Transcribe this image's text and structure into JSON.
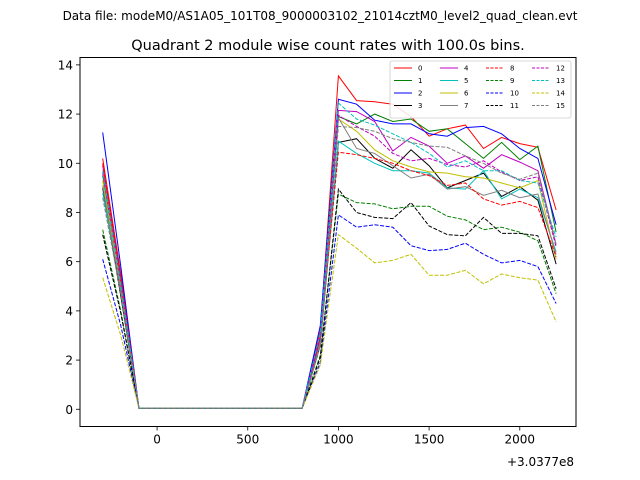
{
  "header": {
    "data_file": "Data file: modeM0/AS1A05_101T08_9000003102_21014cztM0_level2_quad_clean.evt"
  },
  "chart_data": {
    "type": "line",
    "title": "Quadrant 2 module wise count rates with 100.0s bins.",
    "xlabel": "",
    "ylabel": "",
    "x_offset_label": "+3.0377e8",
    "xlim": [
      -425,
      2310
    ],
    "ylim": [
      -0.7,
      14.3
    ],
    "x_ticks": [
      0,
      500,
      1000,
      1500,
      2000
    ],
    "x_tick_labels": [
      "0",
      "500",
      "1000",
      "1500",
      "2000"
    ],
    "y_ticks": [
      0,
      2,
      4,
      6,
      8,
      10,
      12,
      14
    ],
    "y_tick_labels": [
      "0",
      "2",
      "4",
      "6",
      "8",
      "10",
      "12",
      "14"
    ],
    "grid": false,
    "legend_position": "top-right",
    "x": [
      -300,
      -200,
      -100,
      0,
      100,
      200,
      300,
      400,
      500,
      600,
      700,
      800,
      900,
      1000,
      1100,
      1200,
      1300,
      1400,
      1500,
      1600,
      1700,
      1800,
      1900,
      2000,
      2100,
      2200
    ],
    "series": [
      {
        "name": "0",
        "color": "#ff0000",
        "dash": "solid",
        "values": [
          10.2,
          5.5,
          0.05,
          0.05,
          0.05,
          0.05,
          0.05,
          0.05,
          0.05,
          0.05,
          0.05,
          0.05,
          3.2,
          13.55,
          12.55,
          12.5,
          12.4,
          11.9,
          11.1,
          11.4,
          11.55,
          10.6,
          11.05,
          10.8,
          10.65,
          8.1
        ]
      },
      {
        "name": "1",
        "color": "#008000",
        "dash": "solid",
        "values": [
          9.5,
          5.2,
          0.05,
          0.05,
          0.05,
          0.05,
          0.05,
          0.05,
          0.05,
          0.05,
          0.05,
          0.05,
          2.9,
          11.9,
          11.6,
          12.0,
          11.7,
          11.8,
          11.3,
          11.4,
          10.8,
          10.2,
          10.85,
          10.15,
          10.7,
          7.2
        ]
      },
      {
        "name": "2",
        "color": "#0000ff",
        "dash": "solid",
        "values": [
          11.25,
          5.8,
          0.05,
          0.05,
          0.05,
          0.05,
          0.05,
          0.05,
          0.05,
          0.05,
          0.05,
          0.05,
          3.4,
          12.6,
          12.4,
          11.75,
          11.6,
          11.6,
          11.2,
          11.1,
          11.45,
          11.5,
          11.2,
          10.6,
          10.2,
          7.5
        ]
      },
      {
        "name": "3",
        "color": "#000000",
        "dash": "solid",
        "values": [
          9.0,
          4.6,
          0.05,
          0.05,
          0.05,
          0.05,
          0.05,
          0.05,
          0.05,
          0.05,
          0.05,
          0.05,
          2.6,
          10.85,
          11.0,
          10.2,
          9.8,
          10.55,
          9.9,
          9.0,
          9.3,
          9.6,
          8.65,
          9.05,
          8.5,
          5.9
        ]
      },
      {
        "name": "4",
        "color": "#c000c0",
        "dash": "solid",
        "values": [
          9.9,
          5.3,
          0.05,
          0.05,
          0.05,
          0.05,
          0.05,
          0.05,
          0.05,
          0.05,
          0.05,
          0.05,
          3.0,
          12.15,
          12.1,
          11.7,
          10.5,
          11.05,
          10.7,
          10.0,
          10.3,
          9.8,
          10.35,
          10.05,
          9.7,
          6.7
        ]
      },
      {
        "name": "5",
        "color": "#00c0c0",
        "dash": "solid",
        "values": [
          8.8,
          4.9,
          0.05,
          0.05,
          0.05,
          0.05,
          0.05,
          0.05,
          0.05,
          0.05,
          0.05,
          0.05,
          2.7,
          10.9,
          10.4,
          10.0,
          9.7,
          9.7,
          9.6,
          9.0,
          8.95,
          9.7,
          8.55,
          8.95,
          8.6,
          6.4
        ]
      },
      {
        "name": "6",
        "color": "#c0c000",
        "dash": "solid",
        "values": [
          9.3,
          5.0,
          0.05,
          0.05,
          0.05,
          0.05,
          0.05,
          0.05,
          0.05,
          0.05,
          0.05,
          0.05,
          2.8,
          11.8,
          11.3,
          10.55,
          10.1,
          9.85,
          9.65,
          9.6,
          9.45,
          9.4,
          9.2,
          9.0,
          9.3,
          6.1
        ]
      },
      {
        "name": "7",
        "color": "#808080",
        "dash": "solid",
        "values": [
          9.1,
          4.8,
          0.05,
          0.05,
          0.05,
          0.05,
          0.05,
          0.05,
          0.05,
          0.05,
          0.05,
          0.05,
          2.7,
          11.85,
          10.6,
          10.4,
          9.9,
          9.4,
          9.55,
          8.95,
          9.05,
          8.7,
          8.9,
          8.6,
          8.75,
          6.3
        ]
      },
      {
        "name": "8",
        "color": "#ff0000",
        "dash": "dashed",
        "values": [
          10.0,
          5.4,
          0.05,
          0.05,
          0.05,
          0.05,
          0.05,
          0.05,
          0.05,
          0.05,
          0.05,
          0.05,
          2.9,
          10.45,
          10.35,
          10.2,
          10.0,
          9.7,
          9.5,
          9.1,
          9.2,
          8.55,
          8.3,
          8.45,
          8.2,
          6.2
        ]
      },
      {
        "name": "9",
        "color": "#008000",
        "dash": "dashed",
        "values": [
          7.3,
          4.0,
          0.05,
          0.05,
          0.05,
          0.05,
          0.05,
          0.05,
          0.05,
          0.05,
          0.05,
          0.05,
          2.2,
          8.75,
          8.4,
          8.35,
          8.15,
          8.25,
          8.25,
          7.85,
          7.7,
          7.3,
          7.4,
          7.2,
          6.85,
          4.7
        ]
      },
      {
        "name": "10",
        "color": "#0000ff",
        "dash": "dashed",
        "values": [
          6.1,
          3.4,
          0.05,
          0.05,
          0.05,
          0.05,
          0.05,
          0.05,
          0.05,
          0.05,
          0.05,
          0.05,
          1.9,
          7.9,
          7.4,
          7.5,
          7.4,
          6.65,
          6.45,
          6.5,
          6.75,
          6.3,
          5.95,
          6.05,
          5.8,
          4.3
        ]
      },
      {
        "name": "11",
        "color": "#000000",
        "dash": "dashed",
        "values": [
          7.1,
          3.9,
          0.05,
          0.05,
          0.05,
          0.05,
          0.05,
          0.05,
          0.05,
          0.05,
          0.05,
          0.05,
          2.1,
          8.95,
          8.0,
          7.8,
          7.75,
          8.4,
          7.45,
          7.1,
          7.05,
          7.8,
          7.15,
          7.15,
          7.05,
          4.9
        ]
      },
      {
        "name": "12",
        "color": "#c000c0",
        "dash": "dashed",
        "values": [
          9.6,
          5.1,
          0.05,
          0.05,
          0.05,
          0.05,
          0.05,
          0.05,
          0.05,
          0.05,
          0.05,
          0.05,
          2.9,
          11.95,
          11.5,
          11.1,
          10.4,
          10.1,
          10.2,
          9.95,
          9.85,
          10.1,
          9.65,
          9.3,
          9.45,
          6.6
        ]
      },
      {
        "name": "13",
        "color": "#00c0c0",
        "dash": "dashed",
        "values": [
          9.7,
          5.1,
          0.05,
          0.05,
          0.05,
          0.05,
          0.05,
          0.05,
          0.05,
          0.05,
          0.05,
          0.05,
          3.1,
          12.45,
          11.8,
          11.55,
          11.2,
          10.85,
          10.4,
          9.85,
          10.1,
          9.7,
          9.7,
          9.3,
          9.2,
          7.0
        ]
      },
      {
        "name": "14",
        "color": "#c0c000",
        "dash": "dashed",
        "values": [
          5.35,
          3.0,
          0.05,
          0.05,
          0.05,
          0.05,
          0.05,
          0.05,
          0.05,
          0.05,
          0.05,
          0.05,
          1.8,
          7.1,
          6.55,
          5.95,
          6.05,
          6.3,
          5.45,
          5.45,
          5.65,
          5.1,
          5.5,
          5.35,
          5.25,
          3.55
        ]
      },
      {
        "name": "15",
        "color": "#808080",
        "dash": "dashed",
        "values": [
          8.6,
          4.7,
          0.05,
          0.05,
          0.05,
          0.05,
          0.05,
          0.05,
          0.05,
          0.05,
          0.05,
          0.05,
          2.6,
          11.5,
          11.45,
          11.3,
          11.0,
          10.85,
          10.7,
          10.65,
          10.3,
          10.0,
          9.6,
          9.35,
          9.6,
          6.7
        ]
      }
    ]
  }
}
